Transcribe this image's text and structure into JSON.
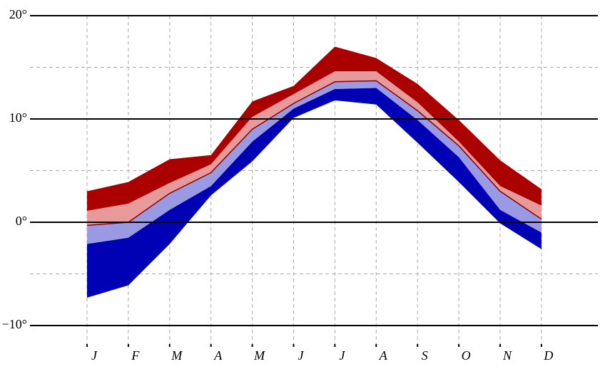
{
  "chart_data": {
    "type": "band",
    "categories": [
      "J",
      "F",
      "M",
      "A",
      "M",
      "J",
      "J",
      "A",
      "S",
      "O",
      "N",
      "D"
    ],
    "series": [
      {
        "values": [
          3.0,
          3.9,
          6.1,
          6.5,
          11.7,
          13.2,
          17.0,
          15.9,
          13.4,
          9.9,
          6.0,
          3.2
        ]
      },
      {
        "values": [
          1.1,
          1.8,
          3.8,
          5.6,
          10.2,
          12.4,
          14.6,
          14.6,
          11.6,
          7.8,
          3.5,
          1.6
        ]
      },
      {
        "values": [
          -0.3,
          0.0,
          2.8,
          4.8,
          9.0,
          11.5,
          13.6,
          13.7,
          10.8,
          7.4,
          3.0,
          0.3
        ]
      },
      {
        "values": [
          -2.1,
          -1.5,
          1.2,
          3.5,
          7.8,
          11.0,
          12.9,
          13.0,
          9.9,
          6.3,
          1.2,
          -1.0
        ]
      },
      {
        "values": [
          -7.3,
          -6.1,
          -2.1,
          2.6,
          5.9,
          10.1,
          11.8,
          11.4,
          7.7,
          3.9,
          -0.1,
          -2.6
        ]
      }
    ],
    "band_colors": [
      "#aa0000",
      "#e89a9a",
      "#9a9ae4",
      "#0000b4"
    ],
    "median_color": "#8b0000",
    "ylim": [
      -10,
      20
    ],
    "yticks": [
      {
        "value": -10,
        "label": "−10°"
      },
      {
        "value": 0,
        "label": "0°"
      },
      {
        "value": 10,
        "label": "10°"
      },
      {
        "value": 20,
        "label": "20°"
      }
    ],
    "yminor": [
      -5,
      5,
      15
    ],
    "grid": true
  }
}
